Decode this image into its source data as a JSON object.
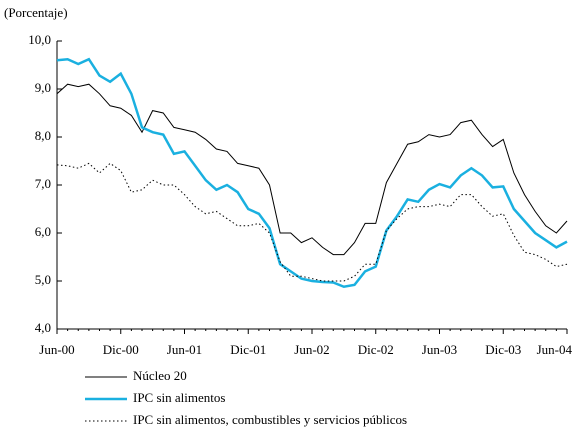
{
  "chart_data": {
    "type": "line",
    "y_label": "(Porcentaje)",
    "categories": [
      "Jun-00",
      null,
      null,
      null,
      null,
      null,
      "Dic-00",
      null,
      null,
      null,
      null,
      null,
      "Jun-01",
      null,
      null,
      null,
      null,
      null,
      "Dic-01",
      null,
      null,
      null,
      null,
      null,
      "Jun-02",
      null,
      null,
      null,
      null,
      null,
      "Dic-02",
      null,
      null,
      null,
      null,
      null,
      "Jun-03",
      null,
      null,
      null,
      null,
      null,
      "Dic-03",
      null,
      null,
      null,
      null,
      null,
      "Jun-04"
    ],
    "ylim": [
      4,
      10
    ],
    "yticks": [
      {
        "value": 4,
        "label": "4,0"
      },
      {
        "value": 5,
        "label": "5,0"
      },
      {
        "value": 6,
        "label": "6,0"
      },
      {
        "value": 7,
        "label": "7,0"
      },
      {
        "value": 8,
        "label": "8,0"
      },
      {
        "value": 9,
        "label": "9,0"
      },
      {
        "value": 10,
        "label": "10,0"
      }
    ],
    "series": [
      {
        "name": "Núcleo 20",
        "color": "#000000",
        "style": "solid",
        "values": [
          8.9,
          9.1,
          9.05,
          9.1,
          8.9,
          8.65,
          8.6,
          8.45,
          8.1,
          8.55,
          8.5,
          8.2,
          8.15,
          8.1,
          7.95,
          7.75,
          7.7,
          7.45,
          7.4,
          7.35,
          7.0,
          6.0,
          6.0,
          5.8,
          5.9,
          5.7,
          5.55,
          5.55,
          5.8,
          6.2,
          6.2,
          7.05,
          7.45,
          7.85,
          7.9,
          8.05,
          8.0,
          8.05,
          8.3,
          8.35,
          8.05,
          7.8,
          7.95,
          7.25,
          6.8,
          6.45,
          6.15,
          6.0,
          6.25
        ]
      },
      {
        "name": "IPC sin alimentos",
        "color": "#1ab0e0",
        "style": "thick",
        "values": [
          9.6,
          9.62,
          9.52,
          9.62,
          9.28,
          9.15,
          9.32,
          8.9,
          8.2,
          8.1,
          8.05,
          7.65,
          7.7,
          7.4,
          7.1,
          6.9,
          7.0,
          6.85,
          6.5,
          6.4,
          6.1,
          5.35,
          5.2,
          5.05,
          5.0,
          4.98,
          4.97,
          4.88,
          4.92,
          5.2,
          5.3,
          6.05,
          6.35,
          6.7,
          6.65,
          6.9,
          7.02,
          6.95,
          7.2,
          7.35,
          7.2,
          6.95,
          6.97,
          6.5,
          6.25,
          6.0,
          5.85,
          5.7,
          5.82
        ]
      },
      {
        "name": "IPC sin alimentos, combustibles y servicios públicos",
        "color": "#000000",
        "style": "dotted",
        "values": [
          7.42,
          7.4,
          7.35,
          7.45,
          7.25,
          7.45,
          7.3,
          6.85,
          6.9,
          7.1,
          7.0,
          7.0,
          6.8,
          6.55,
          6.4,
          6.45,
          6.3,
          6.15,
          6.15,
          6.2,
          6.0,
          5.4,
          5.1,
          5.1,
          5.05,
          5.0,
          5.0,
          5.0,
          5.1,
          5.35,
          5.35,
          6.05,
          6.3,
          6.5,
          6.55,
          6.55,
          6.6,
          6.55,
          6.8,
          6.8,
          6.55,
          6.35,
          6.4,
          5.95,
          5.6,
          5.55,
          5.45,
          5.3,
          5.35
        ]
      }
    ]
  }
}
